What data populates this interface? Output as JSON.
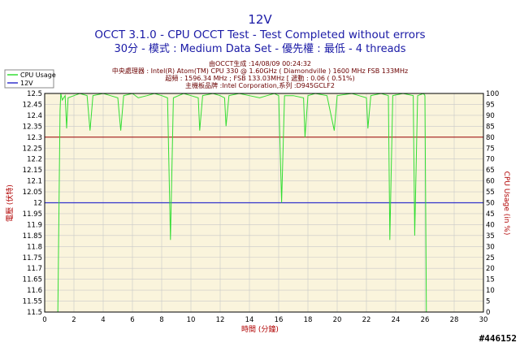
{
  "header": {
    "title": "12V",
    "line1": "OCCT 3.1.0 - CPU OCCT Test - Test Completed without errors",
    "line2": "30分 - 模式 : Medium Data Set - 優先權 : 最低 - 4 threads"
  },
  "info": {
    "line1": "由OCCT生成 :14/08/09 00:24:32",
    "line2": "中央處理器 : Intel(R) Atom(TM) CPU 330 @ 1.60GHz ( Diamondville ) 1600 MHz FSB 133MHz",
    "line3": "超頻 : 1596.34 MHz ; FSB 133.03MHz [ 遞動 : 0.06 ( 0.51%)",
    "line4": "主機板品牌 :Intel Corporation,系列 :D945GCLF2"
  },
  "watermark": "#446152",
  "colors": {
    "cpu": "#33dd33",
    "v12": "#3333cc",
    "threshold": "#990000",
    "plot_bg": "#faf4dc"
  },
  "chart_data": {
    "type": "line",
    "xlabel": "時間 (分鐘)",
    "ylabel": "電壓 (伏特)",
    "y2label": "CPU Usage (in %)",
    "xlim": [
      0,
      30
    ],
    "ylim": [
      11.5,
      12.5
    ],
    "y2lim": [
      0,
      100
    ],
    "x_ticks": [
      "0",
      "2",
      "4",
      "6",
      "8",
      "10",
      "12",
      "14",
      "16",
      "18",
      "20",
      "22",
      "24",
      "26",
      "28",
      "30"
    ],
    "y_ticks": [
      "11.5",
      "11.55",
      "11.6",
      "11.65",
      "11.7",
      "11.75",
      "11.8",
      "11.85",
      "11.9",
      "11.95",
      "12",
      "12.05",
      "12.1",
      "12.15",
      "12.2",
      "12.25",
      "12.3",
      "12.35",
      "12.4",
      "12.45",
      "12.5"
    ],
    "y2_ticks": [
      "0",
      "5",
      "10",
      "15",
      "20",
      "25",
      "30",
      "35",
      "40",
      "45",
      "50",
      "55",
      "60",
      "65",
      "70",
      "75",
      "80",
      "85",
      "90",
      "95",
      "100"
    ],
    "legend_position": "top-left",
    "grid": true,
    "series": [
      {
        "name": "CPU Usage",
        "axis": "right",
        "points": [
          [
            0.9,
            0
          ],
          [
            1.05,
            92
          ],
          [
            1.1,
            100
          ],
          [
            1.2,
            97
          ],
          [
            1.4,
            99
          ],
          [
            1.5,
            84
          ],
          [
            1.6,
            98
          ],
          [
            2,
            99
          ],
          [
            2.4,
            100
          ],
          [
            2.9,
            99
          ],
          [
            3.1,
            83
          ],
          [
            3.3,
            99
          ],
          [
            4,
            100
          ],
          [
            4.5,
            99
          ],
          [
            5,
            98
          ],
          [
            5.2,
            83
          ],
          [
            5.4,
            99
          ],
          [
            6,
            100
          ],
          [
            6.4,
            98
          ],
          [
            7,
            99
          ],
          [
            7.5,
            100
          ],
          [
            8,
            99
          ],
          [
            8.4,
            98
          ],
          [
            8.6,
            33
          ],
          [
            8.8,
            98
          ],
          [
            9.5,
            100
          ],
          [
            10,
            99
          ],
          [
            10.5,
            98
          ],
          [
            10.6,
            83
          ],
          [
            10.8,
            99
          ],
          [
            11.5,
            100
          ],
          [
            12,
            99
          ],
          [
            12.3,
            98
          ],
          [
            12.4,
            85
          ],
          [
            12.6,
            99
          ],
          [
            13.3,
            100
          ],
          [
            14,
            99
          ],
          [
            14.7,
            98
          ],
          [
            15.2,
            99
          ],
          [
            15.7,
            100
          ],
          [
            16,
            99
          ],
          [
            16.2,
            50
          ],
          [
            16.4,
            99
          ],
          [
            17,
            99
          ],
          [
            17.7,
            98
          ],
          [
            17.8,
            80
          ],
          [
            18,
            99
          ],
          [
            18.5,
            100
          ],
          [
            19.3,
            99
          ],
          [
            19.8,
            83
          ],
          [
            20,
            99
          ],
          [
            21,
            100
          ],
          [
            21.5,
            99
          ],
          [
            22,
            98
          ],
          [
            22.1,
            84
          ],
          [
            22.3,
            99
          ],
          [
            23,
            100
          ],
          [
            23.5,
            99
          ],
          [
            23.6,
            33
          ],
          [
            23.8,
            99
          ],
          [
            24.5,
            100
          ],
          [
            25.2,
            99
          ],
          [
            25.3,
            35
          ],
          [
            25.5,
            99
          ],
          [
            25.9,
            100
          ],
          [
            26,
            99
          ],
          [
            26.1,
            0
          ]
        ]
      },
      {
        "name": "12V",
        "axis": "left",
        "points": [
          [
            0,
            12
          ],
          [
            30,
            12
          ]
        ]
      }
    ],
    "threshold": {
      "axis": "right",
      "value": 80
    }
  }
}
